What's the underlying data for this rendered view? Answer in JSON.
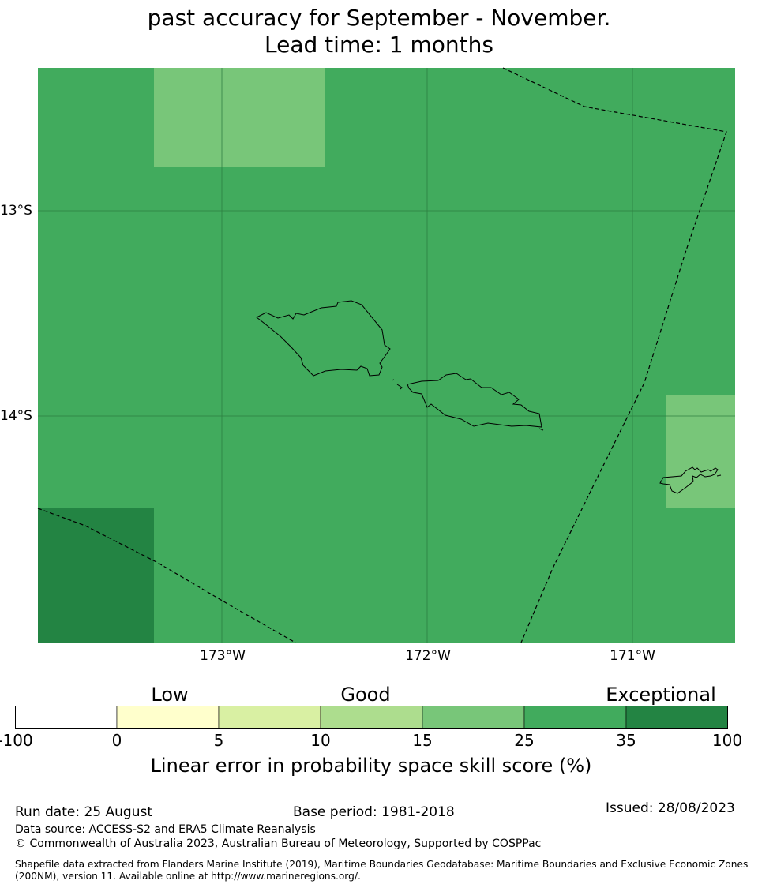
{
  "title": {
    "line1": "past accuracy for September - November.",
    "line2": "Lead time: 1 months"
  },
  "map": {
    "lat_labels": [
      "13°S",
      "14°S"
    ],
    "lon_labels": [
      "173°W",
      "172°W",
      "171°W"
    ],
    "cells_skill_class": {
      "default": "25-35",
      "light_cells": "15-25",
      "dark_cell": "35-100"
    },
    "colors": {
      "class_15_25": "#78c679",
      "class_25_35": "#41ab5d",
      "class_35_100": "#238443",
      "grid": "#2a7a3e",
      "coast": "#000000"
    }
  },
  "legend": {
    "categories": [
      "Low",
      "Good",
      "Exceptional"
    ],
    "ticks": [
      "-100",
      "0",
      "5",
      "10",
      "15",
      "25",
      "35",
      "100"
    ],
    "colors": [
      "#ffffff",
      "#ffffcc",
      "#d9f0a3",
      "#addd8e",
      "#78c679",
      "#41ab5d",
      "#238443"
    ],
    "title": "Linear error in probability space skill score (%)"
  },
  "footer": {
    "run_date": "Run date: 25 August",
    "base_period": "Base period: 1981-2018",
    "issued": "Issued: 28/08/2023",
    "data_source": "Data source: ACCESS-S2 and ERA5 Climate Reanalysis",
    "copyright": "© Commonwealth of Australia 2023, Australian Bureau of Meteorology, Supported by COSPPac",
    "shapefile_line1": "Shapefile data extracted from Flanders Marine Institute (2019), Maritime Boundaries Geodatabase: Maritime Boundaries and Exclusive Economic Zones",
    "shapefile_line2": "(200NM), version 11. Available online at http://www.marineregions.org/."
  }
}
